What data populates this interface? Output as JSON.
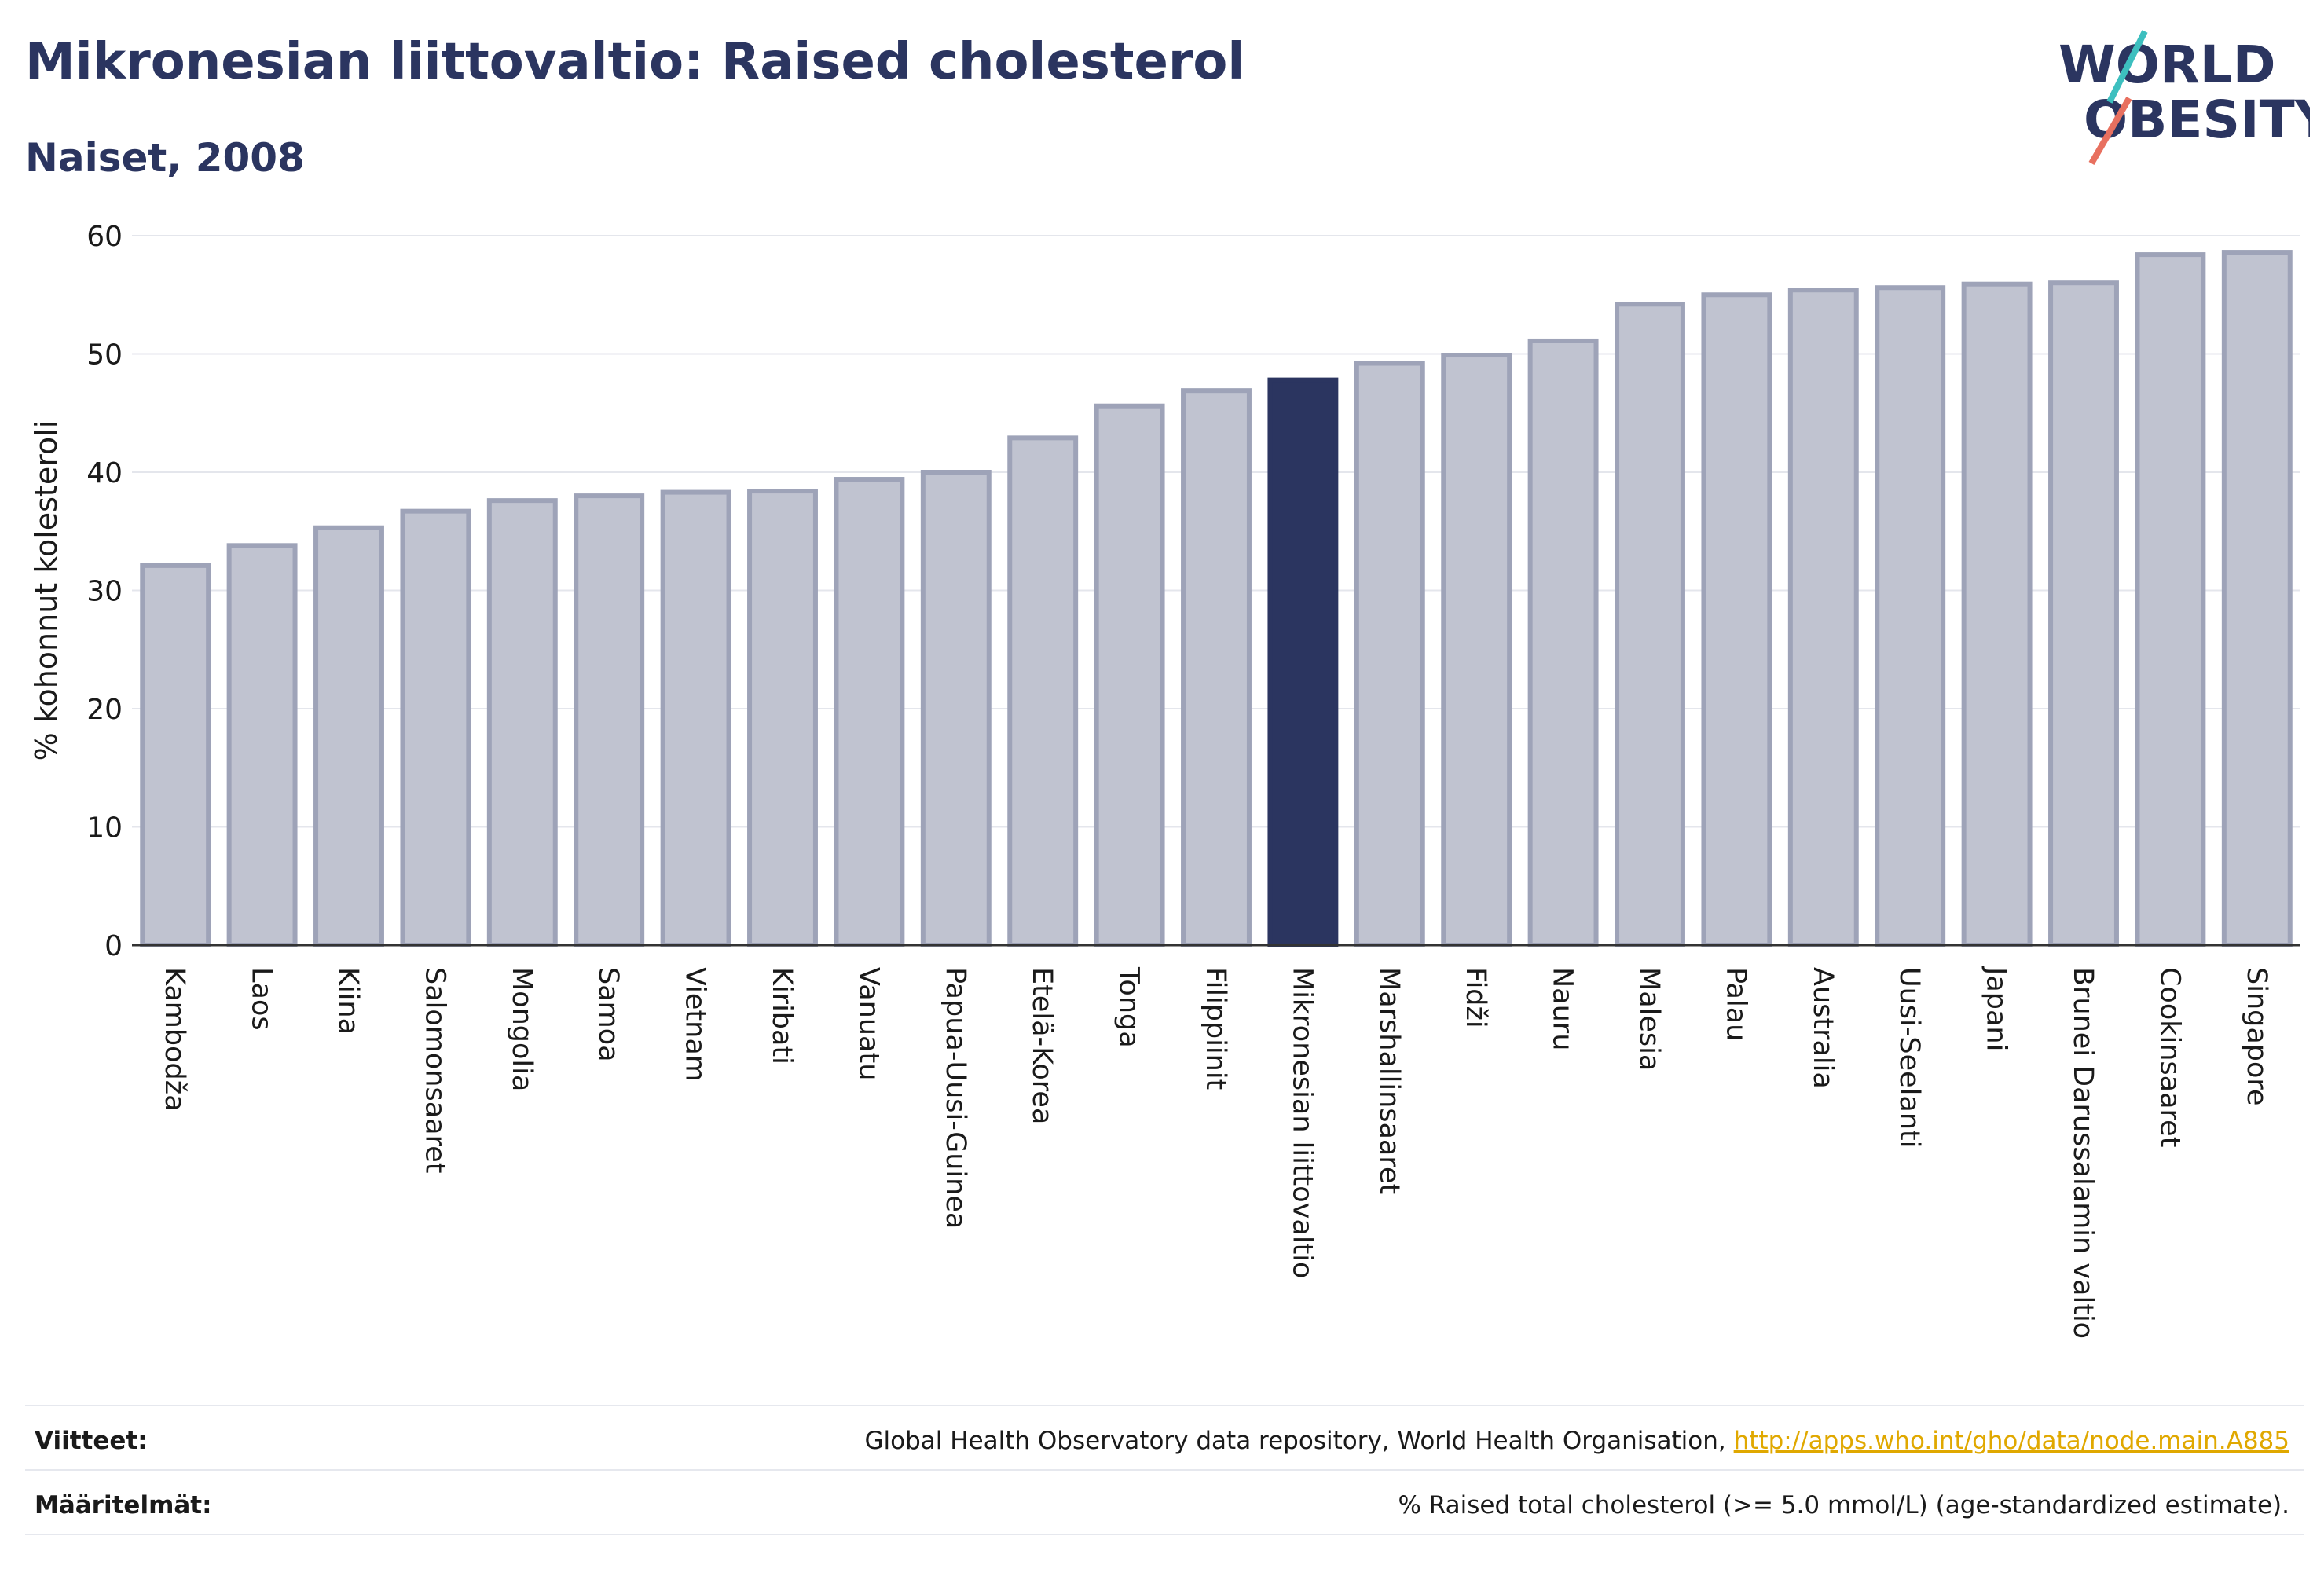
{
  "header": {
    "title": "Mikronesian liittovaltio: Raised cholesterol",
    "subtitle": "Naiset, 2008"
  },
  "logo": {
    "line1": "WORLD",
    "line2": "OBESITY"
  },
  "chart_data": {
    "type": "bar",
    "ylabel": "% kohonnut kolesteroli",
    "ylim": [
      0,
      60
    ],
    "yticks": [
      0,
      10,
      20,
      30,
      40,
      50,
      60
    ],
    "highlight": "Mikronesian liittovaltio",
    "categories": [
      "Kambodža",
      "Laos",
      "Kiina",
      "Salomonsaaret",
      "Mongolia",
      "Samoa",
      "Vietnam",
      "Kiribati",
      "Vanuatu",
      "Papua-Uusi-Guinea",
      "Etelä-Korea",
      "Tonga",
      "Filippiinit",
      "Mikronesian liittovaltio",
      "Marshallinsaaret",
      "Fidži",
      "Nauru",
      "Malesia",
      "Palau",
      "Australia",
      "Uusi-Seelanti",
      "Japani",
      "Brunei Darussalamin valtio",
      "Cookinsaaret",
      "Singapore"
    ],
    "values": [
      32.1,
      33.8,
      35.3,
      36.7,
      37.6,
      38.0,
      38.3,
      38.4,
      39.4,
      40.0,
      42.9,
      45.6,
      46.9,
      47.8,
      49.2,
      49.9,
      51.1,
      54.2,
      55.0,
      55.4,
      55.6,
      55.9,
      56.0,
      58.4,
      58.6
    ],
    "colors": {
      "bar": "#c0c3d0",
      "bar_edge": "#9ea3b8",
      "highlight": "#2b3560",
      "grid": "#e4e6ec",
      "axis": "#333333"
    }
  },
  "footer": {
    "sources_label": "Viitteet:",
    "sources_text": "Global Health Observatory data repository, World Health Organisation, ",
    "sources_link": "http://apps.who.int/gho/data/node.main.A885",
    "definitions_label": "Määritelmät:",
    "definitions_text": "% Raised total cholesterol (>= 5.0 mmol/L) (age-standardized estimate)."
  }
}
